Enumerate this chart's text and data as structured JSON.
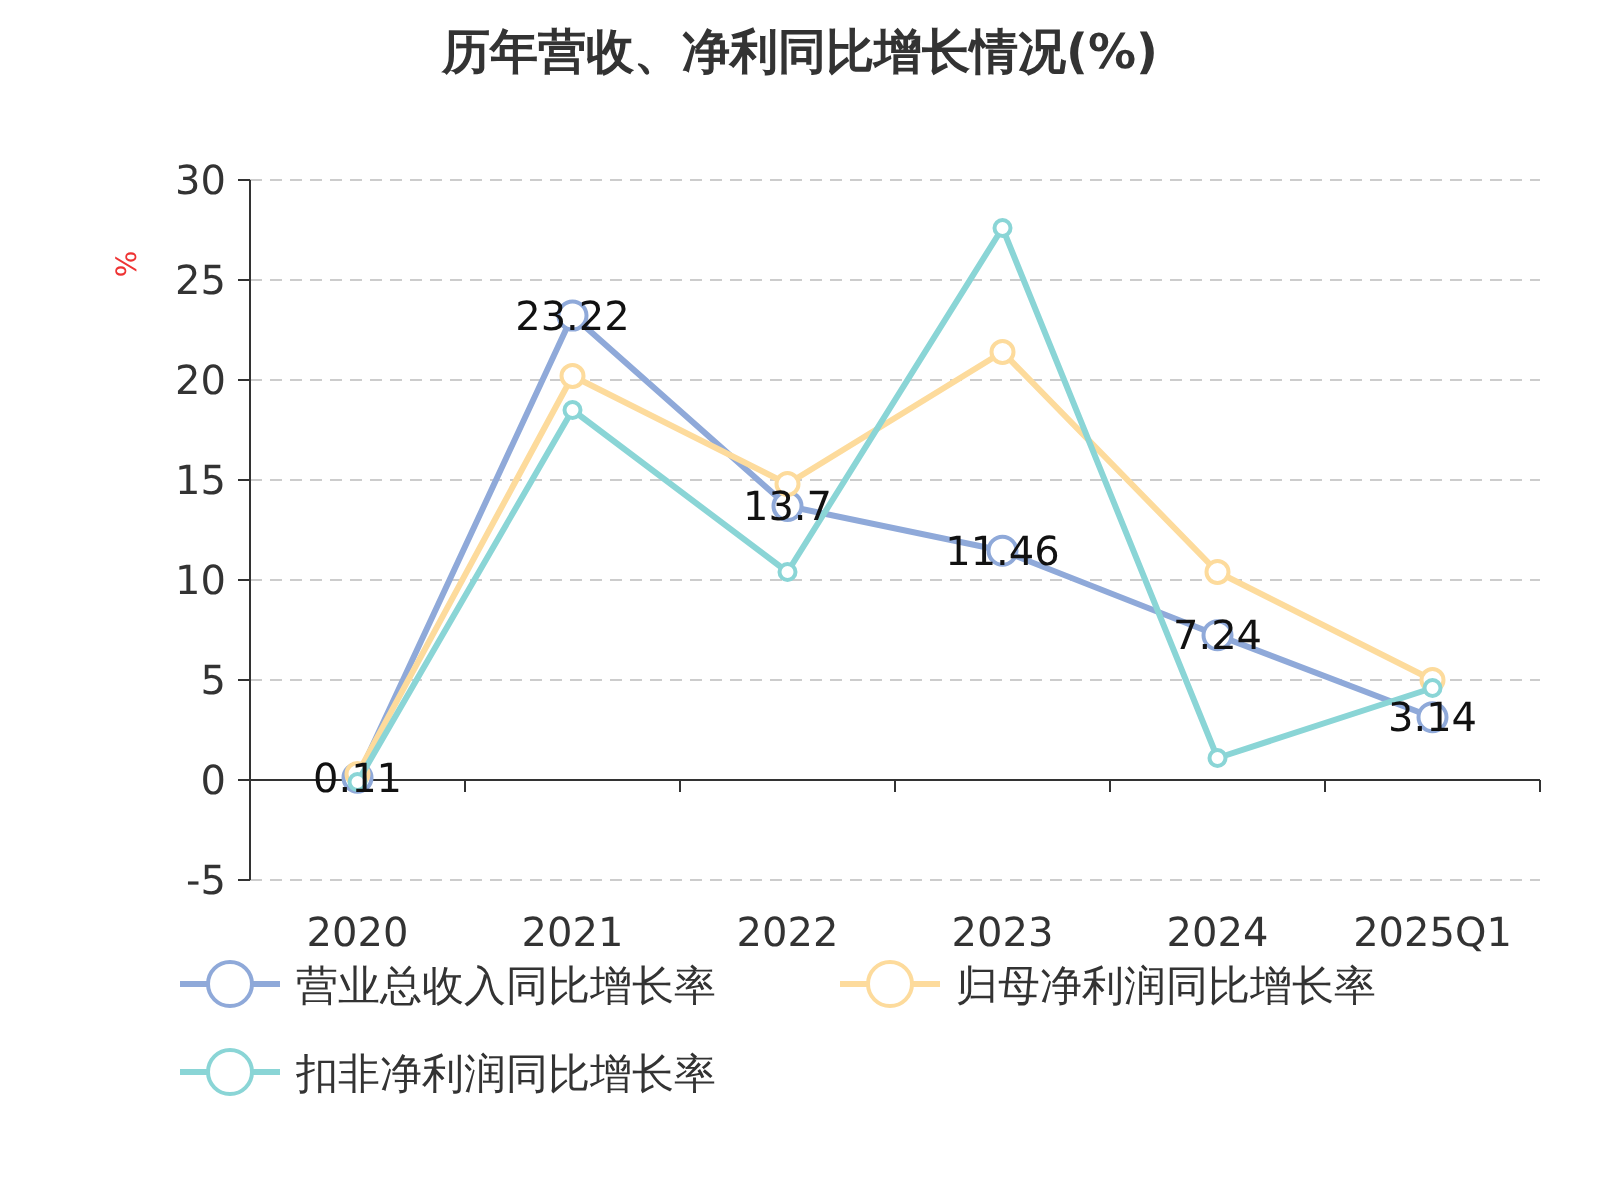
{
  "chart_data": {
    "type": "line",
    "title": "历年营收、净利同比增长情况(%)",
    "ylabel": "%",
    "categories": [
      "2020",
      "2021",
      "2022",
      "2023",
      "2024",
      "2025Q1"
    ],
    "series": [
      {
        "name": "营业总收入同比增长率",
        "color": "#8fa9d9",
        "values": [
          0.11,
          23.22,
          13.7,
          11.46,
          7.24,
          3.14
        ],
        "value_labels": [
          "0.11",
          "23.22",
          "13.7",
          "11.46",
          "7.24",
          "3.14"
        ]
      },
      {
        "name": "归母净利润同比增长率",
        "color": "#fddb9c",
        "values": [
          0.3,
          20.2,
          14.8,
          21.4,
          10.4,
          5.0
        ]
      },
      {
        "name": "扣非净利润同比增长率",
        "color": "#8ad5d6",
        "values": [
          -0.1,
          18.5,
          10.4,
          27.6,
          1.1,
          4.6
        ]
      }
    ],
    "ylim": [
      -5,
      30
    ],
    "yticks": [
      -5,
      0,
      5,
      10,
      15,
      20,
      25,
      30
    ],
    "grid": "y",
    "legend": "bottom",
    "marker": "circle",
    "line_style": "solid"
  }
}
